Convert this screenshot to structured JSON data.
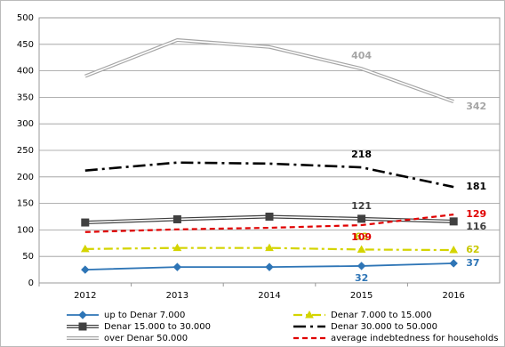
{
  "chart_data": {
    "type": "line",
    "categories": [
      "2012",
      "2013",
      "2014",
      "2015",
      "2016"
    ],
    "ylim": [
      0,
      500
    ],
    "yticks": [
      0,
      50,
      100,
      150,
      200,
      250,
      300,
      350,
      400,
      450,
      500
    ],
    "grid": true,
    "series": [
      {
        "name": "up to Denar 7.000",
        "color": "#2e75b6",
        "dash": "none",
        "marker": "diamond",
        "double": false,
        "width": 1.8,
        "values": [
          25,
          30,
          30,
          32,
          37
        ],
        "value_labels": [
          null,
          null,
          null,
          "32",
          "37"
        ]
      },
      {
        "name": "Denar 7.000 to 15.000",
        "color": "#d4d400",
        "dash": "10 4 3 4",
        "marker": "triangle",
        "double": false,
        "width": 2.2,
        "values": [
          64,
          66,
          66,
          63,
          62
        ],
        "value_labels": [
          null,
          null,
          null,
          "63",
          "62"
        ]
      },
      {
        "name": "Denar 15.000 to 30.000",
        "color": "#404040",
        "dash": "none",
        "marker": "square",
        "double": true,
        "width": 4,
        "values": [
          114,
          120,
          125,
          121,
          116
        ],
        "value_labels": [
          null,
          null,
          null,
          "121",
          "116"
        ]
      },
      {
        "name": "Denar 30.000 to 50.000",
        "color": "#000000",
        "dash": "14 5 3 5",
        "marker": "none",
        "double": false,
        "width": 2.6,
        "values": [
          212,
          227,
          225,
          218,
          181
        ],
        "value_labels": [
          null,
          null,
          null,
          "218",
          "181"
        ]
      },
      {
        "name": "over Denar 50.000",
        "color": "#a6a6a6",
        "dash": "none",
        "marker": "none",
        "double": true,
        "width": 4,
        "values": [
          390,
          458,
          445,
          404,
          342
        ],
        "value_labels": [
          null,
          null,
          null,
          "404",
          "342"
        ]
      },
      {
        "name": "average indebtedness for households",
        "color": "#e00000",
        "dash": "6 4",
        "marker": "none",
        "double": false,
        "width": 2.2,
        "values": [
          96,
          101,
          104,
          109,
          129
        ],
        "value_labels": [
          null,
          null,
          null,
          "109",
          "129"
        ]
      }
    ]
  }
}
